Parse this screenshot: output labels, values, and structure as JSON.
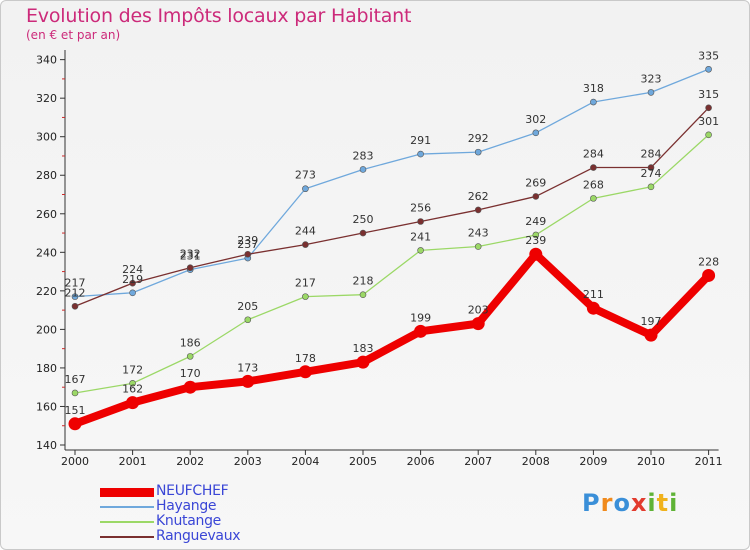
{
  "chart_data": {
    "type": "line",
    "title": "Evolution des Impôts locaux par Habitant",
    "subtitle": "(en € et par an)",
    "xlabel": "",
    "ylabel": "",
    "categories": [
      "2000",
      "2001",
      "2002",
      "2003",
      "2004",
      "2005",
      "2006",
      "2007",
      "2008",
      "2009",
      "2010",
      "2011"
    ],
    "y_ticks": [
      140,
      160,
      180,
      200,
      220,
      240,
      260,
      280,
      300,
      320,
      340
    ],
    "ylim": [
      140,
      345
    ],
    "grid": false,
    "legend_position": "bottom-left",
    "series": [
      {
        "name": "NEUFCHEF",
        "color": "#ee0000",
        "values": [
          151,
          162,
          170,
          173,
          178,
          183,
          199,
          203,
          239,
          211,
          197,
          228
        ]
      },
      {
        "name": "Hayange",
        "color": "#6fa8dc",
        "values": [
          217,
          219,
          231,
          237,
          273,
          283,
          291,
          292,
          302,
          318,
          323,
          335
        ]
      },
      {
        "name": "Knutange",
        "color": "#9bd866",
        "values": [
          167,
          172,
          186,
          205,
          217,
          218,
          241,
          243,
          249,
          268,
          274,
          301
        ]
      },
      {
        "name": "Ranguevaux",
        "color": "#7a3030",
        "values": [
          212,
          224,
          232,
          239,
          244,
          250,
          256,
          262,
          269,
          284,
          284,
          315
        ]
      }
    ]
  },
  "logo": {
    "letters": [
      "P",
      "r",
      "o",
      "x",
      "i",
      "t",
      "i"
    ],
    "colors": [
      "#3a8fd8",
      "#f08a1c",
      "#3a8fd8",
      "#e23b2e",
      "#5fb336",
      "#f0b21c",
      "#5fb336"
    ]
  }
}
